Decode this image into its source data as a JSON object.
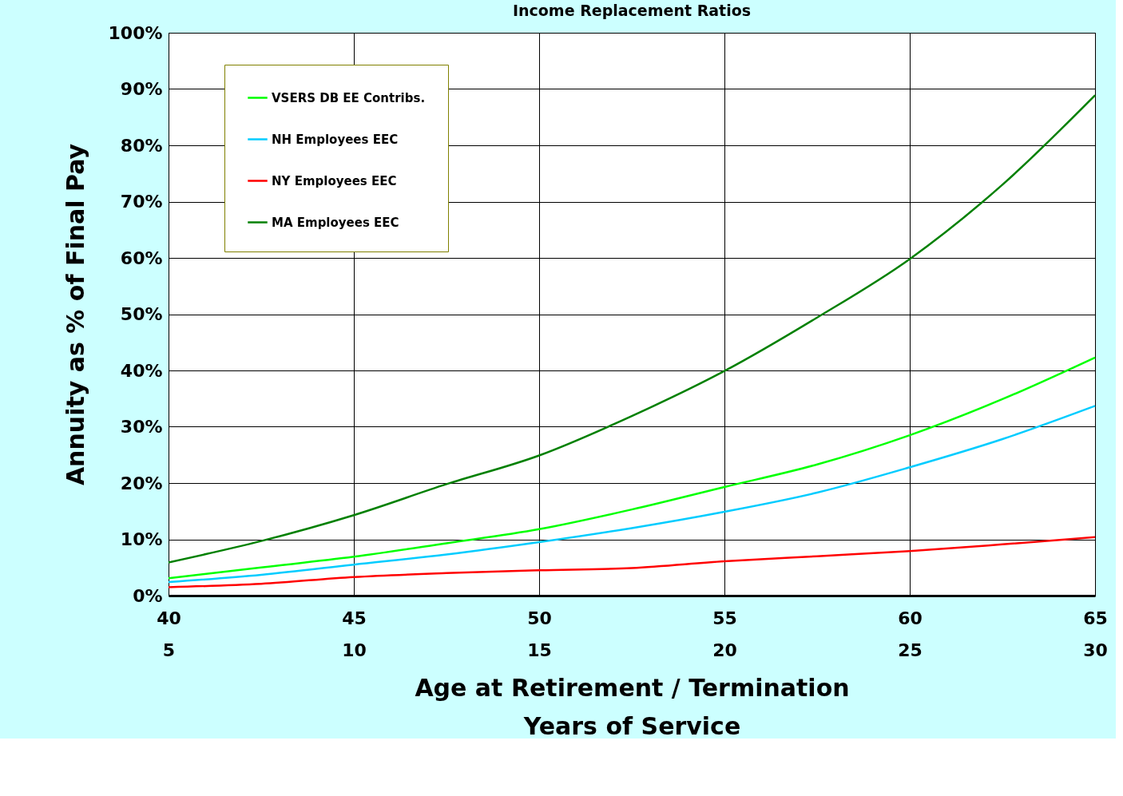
{
  "chart_data": {
    "type": "line",
    "title": "Income Replacement Ratios",
    "xlabel": "Age at Retirement / Termination",
    "x2label": "Years of Service",
    "ylabel": "Annuity as % of Final Pay",
    "x": [
      40,
      42.5,
      45,
      47.5,
      50,
      52.5,
      55,
      57.5,
      60,
      62.5,
      65
    ],
    "series": [
      {
        "name": "VSERS DB EE Contribs.",
        "color": "#00ff00",
        "values": [
          3.1,
          5.0,
          6.9,
          9.3,
          11.8,
          15.3,
          19.3,
          23.3,
          28.5,
          34.9,
          42.3
        ]
      },
      {
        "name": "NH Employees EEC",
        "color": "#00ccff",
        "values": [
          2.4,
          3.7,
          5.5,
          7.3,
          9.5,
          12.0,
          14.9,
          18.3,
          22.8,
          27.8,
          33.7
        ]
      },
      {
        "name": "NY Employees EEC",
        "color": "#ff0000",
        "values": [
          1.5,
          2.1,
          3.3,
          4.0,
          4.5,
          4.9,
          6.1,
          7.0,
          7.9,
          9.1,
          10.4
        ]
      },
      {
        "name": "MA Employees EEC",
        "color": "#008000",
        "values": [
          5.9,
          9.7,
          14.3,
          19.8,
          24.9,
          31.9,
          39.9,
          49.4,
          59.8,
          73.0,
          88.9
        ]
      }
    ],
    "xlim": [
      40,
      65
    ],
    "xticks": [
      40,
      45,
      50,
      55,
      60,
      65
    ],
    "x2lim": [
      5,
      30
    ],
    "x2ticks": [
      5,
      10,
      15,
      20,
      25,
      30
    ],
    "ylim": [
      0,
      100
    ],
    "yticks": [
      {
        "value": 0,
        "label": "0%"
      },
      {
        "value": 10,
        "label": "10%"
      },
      {
        "value": 20,
        "label": "20%"
      },
      {
        "value": 30,
        "label": "30%"
      },
      {
        "value": 40,
        "label": "40%"
      },
      {
        "value": 50,
        "label": "50%"
      },
      {
        "value": 60,
        "label": "60%"
      },
      {
        "value": 70,
        "label": "70%"
      },
      {
        "value": 80,
        "label": "80%"
      },
      {
        "value": 90,
        "label": "90%"
      },
      {
        "value": 100,
        "label": "100%"
      }
    ],
    "grid": true,
    "legend": "top left",
    "marker": "none",
    "line_style": "solid"
  }
}
